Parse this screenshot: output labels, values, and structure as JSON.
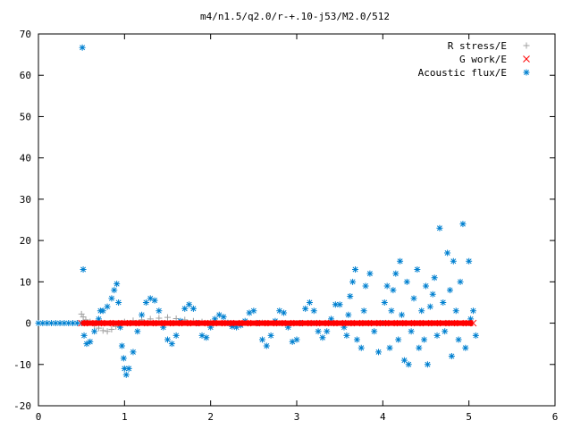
{
  "chart_data": {
    "type": "scatter",
    "title": "m4/n1.5/q2.0/r-+.10-j53/M2.0/512",
    "xlabel": "",
    "ylabel": "",
    "xlim": [
      0,
      6
    ],
    "ylim": [
      -20,
      70
    ],
    "x_ticks": [
      "0",
      "1",
      "2",
      "3",
      "4",
      "5",
      "6"
    ],
    "y_ticks": [
      "-20",
      "-10",
      "0",
      "10",
      "20",
      "30",
      "40",
      "50",
      "60",
      "70"
    ],
    "grid": false,
    "legend_position": "top-right",
    "series": [
      {
        "name": "R stress/E",
        "marker": "plus",
        "color": "#a0a0a0",
        "x": [
          0.5,
          0.52,
          0.55,
          0.6,
          0.65,
          0.7,
          0.75,
          0.8,
          0.85,
          0.9,
          0.95,
          1.0,
          1.1,
          1.2,
          1.3,
          1.4,
          1.5,
          1.6,
          1.7,
          1.8,
          1.9,
          2.0,
          2.2,
          2.4,
          2.6,
          2.8,
          3.0,
          3.2,
          3.4,
          3.6,
          3.8,
          4.0,
          4.2,
          4.4,
          4.6,
          4.8,
          5.0
        ],
        "y": [
          2.2,
          1.5,
          0.8,
          0.3,
          -0.5,
          -1.2,
          -1.8,
          -2.0,
          -1.5,
          -0.8,
          -0.2,
          0.3,
          0.6,
          0.8,
          1.0,
          1.2,
          1.4,
          1.1,
          0.8,
          0.5,
          0.3,
          0.2,
          0.1,
          0.1,
          0.1,
          0.0,
          0.0,
          0.0,
          0.0,
          0.0,
          0.0,
          0.0,
          0.0,
          0.0,
          0.0,
          0.0,
          0.0
        ]
      },
      {
        "name": "G work/E",
        "marker": "cross",
        "color": "#ff0000",
        "x": [
          0.5,
          0.6,
          0.7,
          0.8,
          0.9,
          1.0,
          1.1,
          1.2,
          1.3,
          1.4,
          1.5,
          1.6,
          1.7,
          1.8,
          1.9,
          2.0,
          2.1,
          2.2,
          2.3,
          2.4,
          2.5,
          2.6,
          2.7,
          2.8,
          2.9,
          3.0,
          3.1,
          3.2,
          3.3,
          3.4,
          3.5,
          3.6,
          3.7,
          3.8,
          3.9,
          4.0,
          4.1,
          4.2,
          4.3,
          4.4,
          4.5,
          4.6,
          4.7,
          4.8,
          4.9,
          5.0,
          5.05
        ],
        "y": [
          0,
          0,
          0,
          0,
          0,
          0,
          0,
          0,
          0,
          0,
          0,
          0,
          0,
          0,
          0,
          0,
          0,
          0,
          0,
          0,
          0,
          0,
          0,
          0,
          0,
          0,
          0,
          0,
          0,
          0,
          0,
          0,
          0,
          0,
          0,
          0,
          0,
          0,
          0,
          0,
          0,
          0,
          0,
          0,
          0,
          0,
          0
        ]
      },
      {
        "name": "Acoustic flux/E",
        "marker": "star",
        "color": "#0080d0",
        "x": [
          0.0,
          0.05,
          0.1,
          0.15,
          0.2,
          0.25,
          0.3,
          0.35,
          0.4,
          0.45,
          0.5,
          0.51,
          0.52,
          0.53,
          0.56,
          0.6,
          0.65,
          0.7,
          0.72,
          0.75,
          0.8,
          0.85,
          0.88,
          0.91,
          0.93,
          0.95,
          0.97,
          0.99,
          1.0,
          1.02,
          1.05,
          1.1,
          1.15,
          1.2,
          1.25,
          1.3,
          1.35,
          1.4,
          1.45,
          1.5,
          1.55,
          1.6,
          1.65,
          1.7,
          1.75,
          1.8,
          1.85,
          1.9,
          1.95,
          2.0,
          2.05,
          2.1,
          2.15,
          2.2,
          2.25,
          2.3,
          2.35,
          2.4,
          2.45,
          2.5,
          2.55,
          2.6,
          2.65,
          2.7,
          2.75,
          2.8,
          2.85,
          2.9,
          2.95,
          3.0,
          3.05,
          3.1,
          3.15,
          3.2,
          3.25,
          3.3,
          3.35,
          3.4,
          3.45,
          3.5,
          3.55,
          3.58,
          3.6,
          3.62,
          3.65,
          3.68,
          3.7,
          3.75,
          3.78,
          3.8,
          3.85,
          3.9,
          3.95,
          4.0,
          4.02,
          4.05,
          4.08,
          4.1,
          4.12,
          4.15,
          4.18,
          4.2,
          4.22,
          4.25,
          4.28,
          4.3,
          4.33,
          4.36,
          4.4,
          4.42,
          4.45,
          4.48,
          4.5,
          4.52,
          4.55,
          4.58,
          4.6,
          4.63,
          4.66,
          4.7,
          4.72,
          4.75,
          4.78,
          4.8,
          4.82,
          4.85,
          4.88,
          4.9,
          4.93,
          4.96,
          5.0,
          5.02,
          5.05,
          5.08
        ],
        "y": [
          0,
          0,
          0,
          0,
          0,
          0,
          0,
          0,
          0,
          0,
          0,
          66.7,
          13.0,
          -3.0,
          -5.0,
          -4.5,
          -2.0,
          1.0,
          3.0,
          3.0,
          4.0,
          6.0,
          8.0,
          9.5,
          5.0,
          -1.0,
          -5.5,
          -8.5,
          -11.0,
          -12.5,
          -11.0,
          -7.0,
          -2.0,
          2.0,
          5.0,
          6.0,
          5.5,
          3.0,
          -1.0,
          -4.0,
          -5.0,
          -3.0,
          0.5,
          3.5,
          4.5,
          3.5,
          0.0,
          -3.0,
          -3.5,
          -1.0,
          1.0,
          2.0,
          1.5,
          0.0,
          -0.8,
          -1.0,
          -0.5,
          0.5,
          2.5,
          3.0,
          0.0,
          -4.0,
          -5.5,
          -3.0,
          0.5,
          3.0,
          2.5,
          -1.0,
          -4.5,
          -4.0,
          0.0,
          3.5,
          5.0,
          3.0,
          -2.0,
          -3.5,
          -2.0,
          1.0,
          4.5,
          4.5,
          -1.0,
          -3.0,
          2.0,
          6.5,
          10.0,
          13.0,
          -4.0,
          -6.0,
          3.0,
          9.0,
          12.0,
          -2.0,
          -7.0,
          0.0,
          5.0,
          9.0,
          -6.0,
          3.0,
          8.0,
          12.0,
          -4.0,
          15.0,
          2.0,
          -9.0,
          10.0,
          -10.0,
          -2.0,
          6.0,
          13.0,
          -6.0,
          3.0,
          -4.0,
          9.0,
          -10.0,
          4.0,
          7.0,
          11.0,
          -3.0,
          23.0,
          5.0,
          -2.0,
          17.0,
          8.0,
          -8.0,
          15.0,
          3.0,
          -4.0,
          10.0,
          24.0,
          -6.0,
          15.0,
          1.0,
          3.0,
          -3.0
        ]
      }
    ]
  }
}
